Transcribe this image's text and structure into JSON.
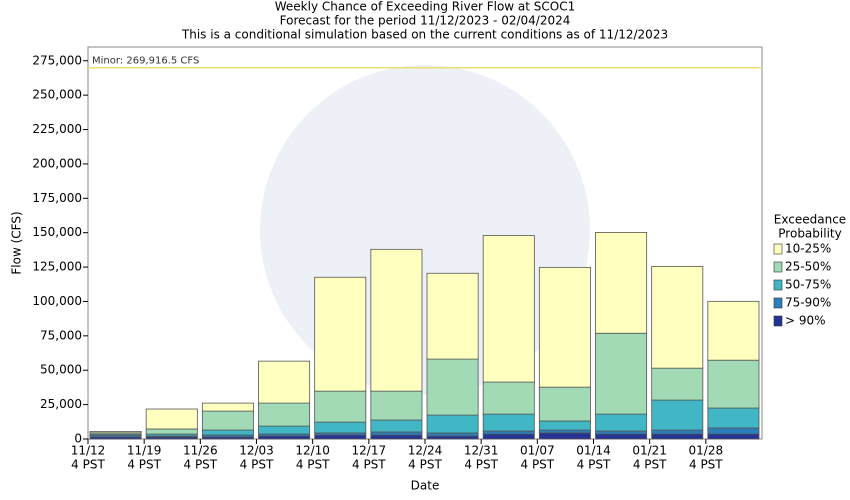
{
  "chart_data": {
    "type": "stacked_bar",
    "title": "Weekly Chance of Exceeding River Flow at SCOC1",
    "subtitle": "Forecast for the period 11/12/2023 - 02/04/2024",
    "note": "This is a conditional simulation based on the current conditions as of 11/12/2023",
    "y_label": "Flow (CFS)",
    "x_label": "Date",
    "categories": [
      "11/12",
      "11/19",
      "11/26",
      "12/03",
      "12/10",
      "12/17",
      "12/24",
      "12/31",
      "01/07",
      "01/14",
      "01/21",
      "01/28"
    ],
    "x_tick_sublabel": "4 PST",
    "legend_title": [
      "Exceedance",
      "Probability"
    ],
    "series": [
      {
        "name": "10-25%",
        "color": "#ffffc0",
        "values": [
          1000,
          14500,
          5800,
          30500,
          82800,
          103100,
          62400,
          106600,
          87100,
          73300,
          74000,
          42800
        ]
      },
      {
        "name": "25-50%",
        "color": "#a1dab4",
        "values": [
          1000,
          3700,
          13800,
          16700,
          22500,
          21000,
          40700,
          23300,
          24600,
          58800,
          23200,
          34800
        ]
      },
      {
        "name": "50-75%",
        "color": "#41b6c4",
        "values": [
          1000,
          1400,
          3600,
          5800,
          7900,
          8700,
          13000,
          12300,
          6600,
          12300,
          21800,
          14500
        ]
      },
      {
        "name": "75-90%",
        "color": "#2c7fb8",
        "values": [
          1000,
          800,
          1400,
          1400,
          1500,
          2200,
          2200,
          2200,
          2100,
          2200,
          2900,
          4400
        ]
      },
      {
        "name": "> 90%",
        "color": "#253494",
        "values": [
          1500,
          1400,
          1500,
          2200,
          2900,
          2900,
          2200,
          3600,
          4400,
          3600,
          3600,
          3600
        ]
      }
    ],
    "threshold": {
      "label": "Minor: 269,916.5 CFS",
      "value": 269916.5,
      "color": "#e8e070"
    },
    "ylim": [
      0,
      285000
    ],
    "yticks": [
      0,
      {
        "value": 25000,
        "label": "25,000"
      },
      {
        "value": 50000,
        "label": "50,000"
      },
      {
        "value": 75000,
        "label": "75,000"
      },
      {
        "value": 100000,
        "label": "100,000"
      },
      {
        "value": 125000,
        "label": "125,000"
      },
      {
        "value": 150000,
        "label": "150,000"
      },
      {
        "value": 175000,
        "label": "175,000"
      },
      {
        "value": 200000,
        "label": "200,000"
      },
      {
        "value": 225000,
        "label": "225,000"
      },
      {
        "value": 250000,
        "label": "250,000"
      },
      {
        "value": 275000,
        "label": "275,000"
      }
    ]
  }
}
